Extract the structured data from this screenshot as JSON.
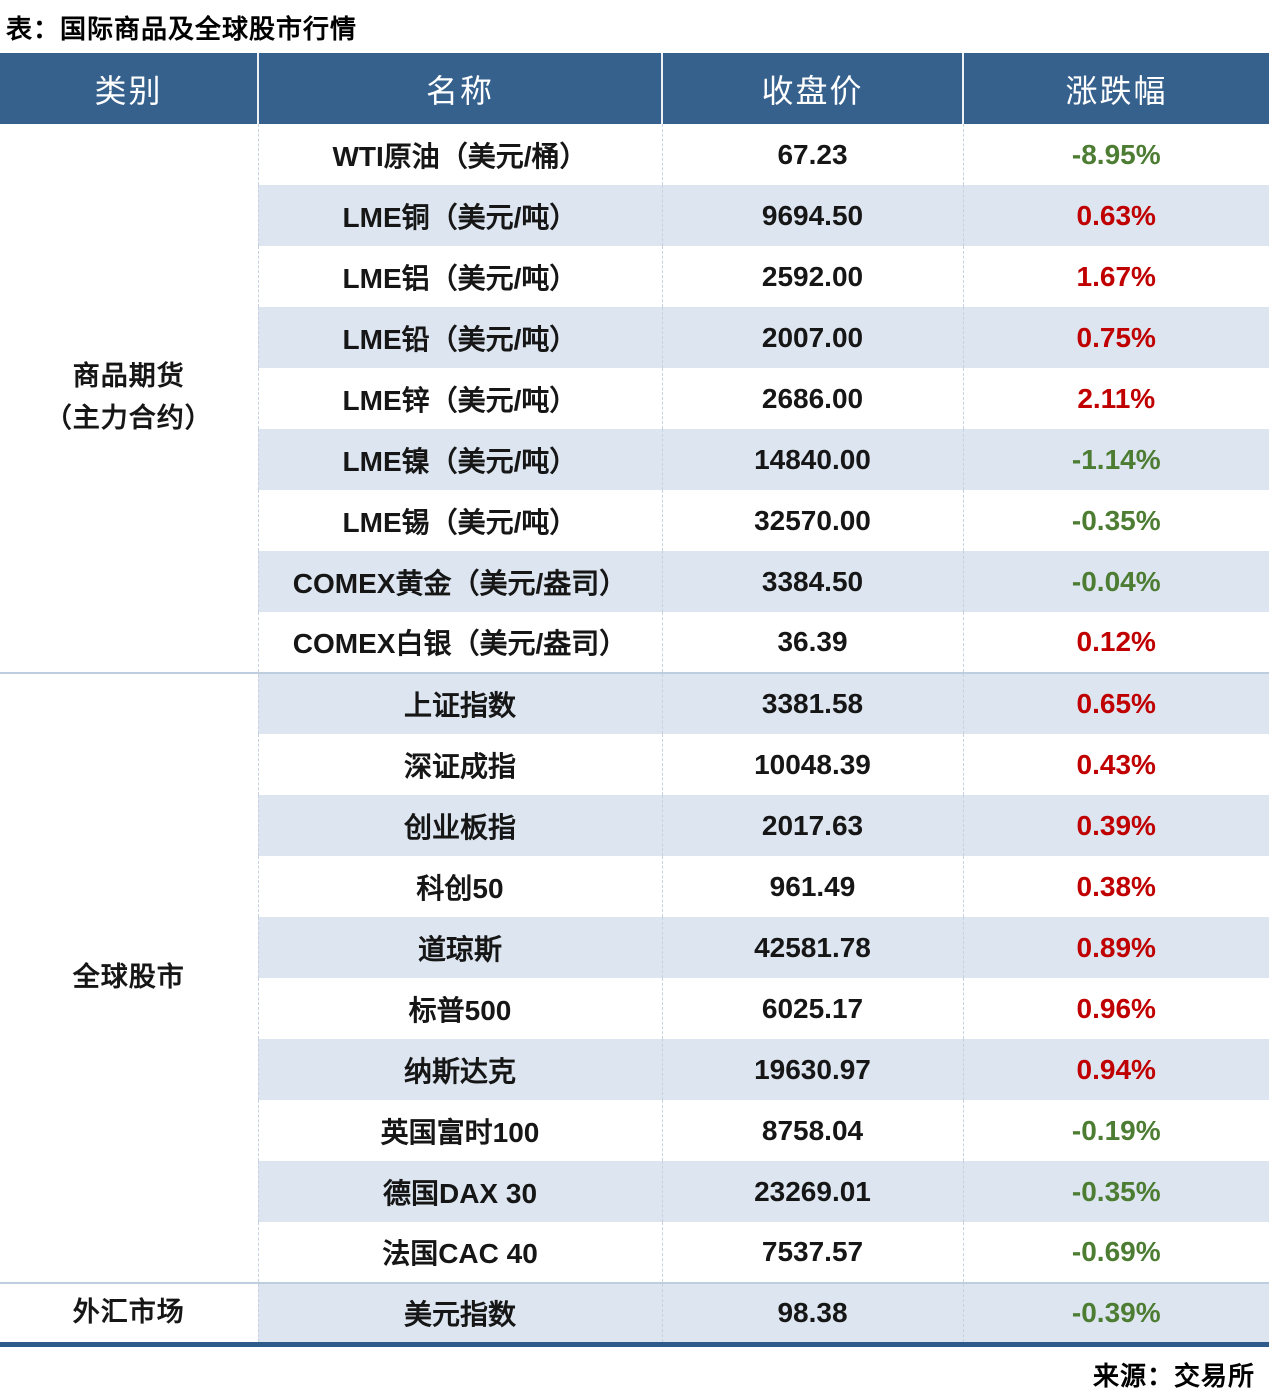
{
  "colors": {
    "header_bg": "#36618D",
    "stripe_bg": "#DCE5F0",
    "positive_red": "#C00000",
    "negative_green": "#4D7C33",
    "bottom_rule": "#2E5B8C"
  },
  "chart_data": {
    "type": "table",
    "title": "表：国际商品及全球股市行情",
    "columns": [
      "类别",
      "名称",
      "收盘价",
      "涨跌幅"
    ],
    "sections": [
      {
        "category_lines": [
          "商品期货",
          "（主力合约）"
        ],
        "rows": [
          {
            "name": "WTI原油（美元/桶）",
            "close": "67.23",
            "change": "-8.95%"
          },
          {
            "name": "LME铜（美元/吨）",
            "close": "9694.50",
            "change": "0.63%"
          },
          {
            "name": "LME铝（美元/吨）",
            "close": "2592.00",
            "change": "1.67%"
          },
          {
            "name": "LME铅（美元/吨）",
            "close": "2007.00",
            "change": "0.75%"
          },
          {
            "name": "LME锌（美元/吨）",
            "close": "2686.00",
            "change": "2.11%"
          },
          {
            "name": "LME镍（美元/吨）",
            "close": "14840.00",
            "change": "-1.14%"
          },
          {
            "name": "LME锡（美元/吨）",
            "close": "32570.00",
            "change": "-0.35%"
          },
          {
            "name": "COMEX黄金（美元/盎司）",
            "close": "3384.50",
            "change": "-0.04%"
          },
          {
            "name": "COMEX白银（美元/盎司）",
            "close": "36.39",
            "change": "0.12%"
          }
        ]
      },
      {
        "category_lines": [
          "全球股市"
        ],
        "rows": [
          {
            "name": "上证指数",
            "close": "3381.58",
            "change": "0.65%"
          },
          {
            "name": "深证成指",
            "close": "10048.39",
            "change": "0.43%"
          },
          {
            "name": "创业板指",
            "close": "2017.63",
            "change": "0.39%"
          },
          {
            "name": "科创50",
            "close": "961.49",
            "change": "0.38%"
          },
          {
            "name": "道琼斯",
            "close": "42581.78",
            "change": "0.89%"
          },
          {
            "name": "标普500",
            "close": "6025.17",
            "change": "0.96%"
          },
          {
            "name": "纳斯达克",
            "close": "19630.97",
            "change": "0.94%"
          },
          {
            "name": "英国富时100",
            "close": "8758.04",
            "change": "-0.19%"
          },
          {
            "name": "德国DAX 30",
            "close": "23269.01",
            "change": "-0.35%"
          },
          {
            "name": "法国CAC 40",
            "close": "7537.57",
            "change": "-0.69%"
          }
        ]
      },
      {
        "category_lines": [
          "外汇市场"
        ],
        "rows": [
          {
            "name": "美元指数",
            "close": "98.38",
            "change": "-0.39%"
          }
        ]
      }
    ],
    "source": "来源：交易所"
  }
}
